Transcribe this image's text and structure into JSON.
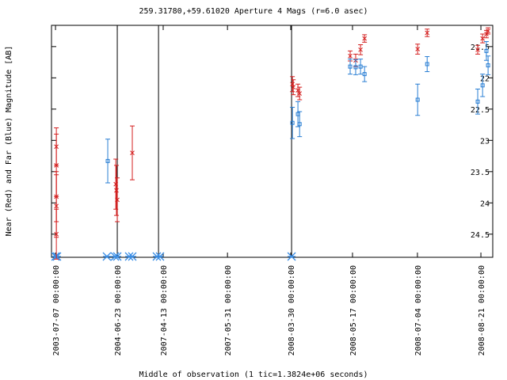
{
  "chart_data": {
    "type": "scatter",
    "title": "259.31780,+59.61020   Aperture 4 Mags (r=6.0 asec)",
    "x_label": "Middle of observation (1 tic=1.3824e+06 seconds)",
    "y_label": "Near (Red) and Far (Blue) Magnitude [AB]",
    "xlim": [
      -0.19,
      20.67
    ],
    "ylim": [
      21.16,
      24.87
    ],
    "y_reversed": true,
    "xticks": [
      {
        "value": 0,
        "label": "2003-07-07 00:00:00"
      },
      {
        "value": 2.92,
        "label": "2004-06-23 00:00:00"
      },
      {
        "value": 5.09,
        "label": "2007-04-13 00:00:00"
      },
      {
        "value": 8.13,
        "label": "2007-05-31 00:00:00"
      },
      {
        "value": 11.12,
        "label": "2008-03-30 00:00:00"
      },
      {
        "value": 14.04,
        "label": "2008-05-17 00:00:00"
      },
      {
        "value": 17.11,
        "label": "2008-07-04 00:00:00"
      },
      {
        "value": 20.11,
        "label": "2008-08-21 00:00:00"
      }
    ],
    "yticks": [
      21.5,
      22,
      22.5,
      23,
      23.5,
      24,
      24.5
    ],
    "vlines": [
      2.92,
      4.87,
      11.16
    ],
    "bottom_markers": {
      "color": "#3a8ee6",
      "x": [
        0,
        0.07,
        2.43,
        2.81,
        2.92,
        3.48,
        3.63,
        4.79,
        4.94,
        11.16
      ]
    },
    "series": [
      {
        "color": "#d42020",
        "marker": "x",
        "x": [
          0.04,
          0.04,
          0.04,
          0.04,
          0.04,
          2.85,
          2.88,
          2.92,
          3.63,
          11.2,
          11.24,
          11.46,
          11.54,
          13.93,
          14.19,
          14.42,
          14.61,
          17.12,
          17.57,
          19.96,
          20.19,
          20.37,
          20.45
        ],
        "values": [
          23.1,
          23.4,
          23.9,
          24.05,
          24.5,
          23.7,
          23.8,
          23.95,
          23.2,
          22.1,
          22.15,
          22.2,
          22.25,
          21.65,
          21.72,
          21.55,
          21.37,
          21.54,
          21.28,
          21.55,
          21.37,
          21.3,
          21.25
        ],
        "errors": [
          0.3,
          0.5,
          0.4,
          0.5,
          0.4,
          0.4,
          0.4,
          0.35,
          0.43,
          0.12,
          0.12,
          0.1,
          0.1,
          0.08,
          0.1,
          0.08,
          0.06,
          0.08,
          0.06,
          0.07,
          0.07,
          0.06,
          0.05
        ]
      },
      {
        "color": "#2a7fd4",
        "marker": "square",
        "x": [
          2.47,
          11.2,
          11.46,
          11.54,
          13.93,
          14.19,
          14.42,
          14.61,
          17.12,
          17.57,
          19.96,
          20.19,
          20.37,
          20.45
        ],
        "values": [
          23.33,
          22.72,
          22.58,
          22.74,
          21.82,
          21.83,
          21.82,
          21.94,
          22.35,
          21.78,
          22.38,
          22.12,
          21.57,
          21.8
        ],
        "errors": [
          0.35,
          0.25,
          0.2,
          0.2,
          0.12,
          0.12,
          0.12,
          0.12,
          0.25,
          0.12,
          0.2,
          0.18,
          0.15,
          0.15
        ]
      }
    ]
  }
}
